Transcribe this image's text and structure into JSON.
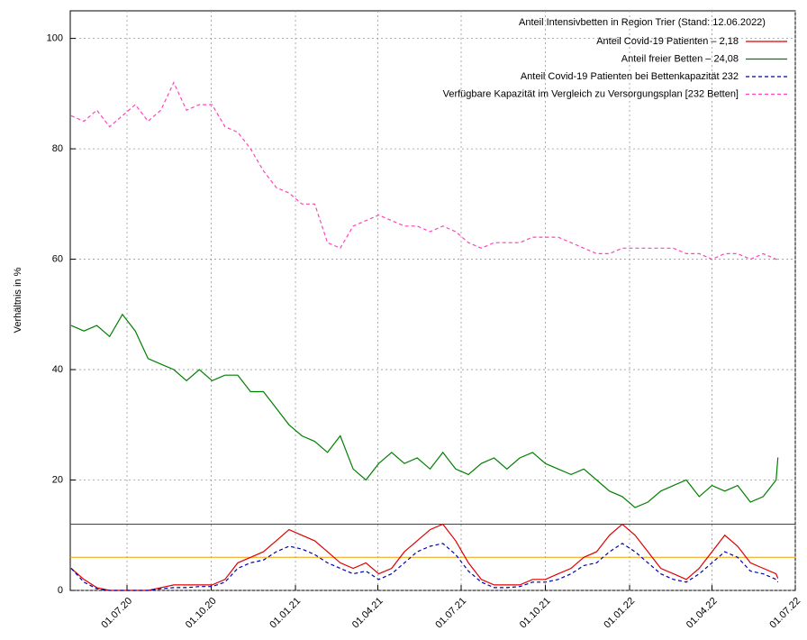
{
  "chart_data": {
    "type": "line",
    "legend_title": "Anteil Intensivbetten in Region Trier (Stand: 12.06.2022)",
    "y_label": "Verhältnis in %",
    "xlim": [
      "2020-04-30",
      "2022-07-01"
    ],
    "xticks": [
      {
        "value": "2020-07-01",
        "label": "01.07.20"
      },
      {
        "value": "2020-10-01",
        "label": "01.10.20"
      },
      {
        "value": "2021-01-01",
        "label": "01.01.21"
      },
      {
        "value": "2021-04-01",
        "label": "01.04.21"
      },
      {
        "value": "2021-07-01",
        "label": "01.07.21"
      },
      {
        "value": "2021-10-01",
        "label": "01.10.21"
      },
      {
        "value": "2022-01-01",
        "label": "01.01.22"
      },
      {
        "value": "2022-04-01",
        "label": "01.04.22"
      },
      {
        "value": "2022-07-01",
        "label": "01.07.22"
      }
    ],
    "ylim": [
      0,
      105
    ],
    "yticks": [
      0,
      20,
      40,
      60,
      80,
      100
    ],
    "grid": true,
    "legend": "top-right",
    "reference_lines": [
      {
        "value": 12,
        "color": "#dd0000"
      },
      {
        "value": 6,
        "color": "#f0a000"
      }
    ],
    "x": [
      "2020-05-01",
      "2020-05-15",
      "2020-05-29",
      "2020-06-12",
      "2020-06-26",
      "2020-07-10",
      "2020-07-24",
      "2020-08-07",
      "2020-08-21",
      "2020-09-04",
      "2020-09-18",
      "2020-10-02",
      "2020-10-16",
      "2020-10-30",
      "2020-11-13",
      "2020-11-27",
      "2020-12-11",
      "2020-12-25",
      "2021-01-08",
      "2021-01-22",
      "2021-02-05",
      "2021-02-19",
      "2021-03-05",
      "2021-03-19",
      "2021-04-02",
      "2021-04-16",
      "2021-04-30",
      "2021-05-14",
      "2021-05-28",
      "2021-06-11",
      "2021-06-25",
      "2021-07-09",
      "2021-07-23",
      "2021-08-06",
      "2021-08-20",
      "2021-09-03",
      "2021-09-17",
      "2021-10-01",
      "2021-10-15",
      "2021-10-29",
      "2021-11-12",
      "2021-11-26",
      "2021-12-10",
      "2021-12-24",
      "2022-01-07",
      "2022-01-21",
      "2022-02-04",
      "2022-02-18",
      "2022-03-04",
      "2022-03-18",
      "2022-04-01",
      "2022-04-15",
      "2022-04-29",
      "2022-05-13",
      "2022-05-27",
      "2022-06-10",
      "2022-06-12"
    ],
    "series": [
      {
        "name": "Anteil Covid-19 Patienten – 2,18",
        "color": "#dd0000",
        "dash": false,
        "values": [
          4,
          2,
          0.5,
          0,
          0,
          0,
          0,
          0.5,
          1,
          1,
          1,
          1,
          2,
          5,
          6,
          7,
          9,
          11,
          10,
          9,
          7,
          5,
          4,
          5,
          3,
          4,
          7,
          9,
          11,
          12,
          9,
          5,
          2,
          1,
          1,
          1,
          2,
          2,
          3,
          4,
          6,
          7,
          10,
          12,
          10,
          7,
          4,
          3,
          2,
          4,
          7,
          10,
          8,
          5,
          4,
          3,
          2.18
        ]
      },
      {
        "name": "Anteil freier Betten –  24,08",
        "color": "#008000",
        "dash": false,
        "values": [
          48,
          47,
          48,
          46,
          50,
          47,
          42,
          41,
          40,
          38,
          40,
          38,
          39,
          39,
          36,
          36,
          33,
          30,
          28,
          27,
          25,
          28,
          22,
          20,
          23,
          25,
          23,
          24,
          22,
          25,
          22,
          21,
          23,
          24,
          22,
          24,
          25,
          23,
          22,
          21,
          22,
          20,
          18,
          17,
          15,
          16,
          18,
          19,
          20,
          17,
          19,
          18,
          19,
          16,
          17,
          20,
          24.08
        ]
      },
      {
        "name": "Anteil Covid-19 Patienten bei Bettenkapazität 232",
        "color": "#0000aa",
        "dash": true,
        "values": [
          4,
          1.5,
          0.3,
          0,
          0,
          0,
          0,
          0.3,
          0.5,
          0.5,
          0.7,
          0.7,
          1.5,
          4,
          5,
          5.5,
          7,
          8,
          7.5,
          6.5,
          5,
          4,
          3,
          3.5,
          2,
          3,
          5,
          7,
          8,
          8.5,
          6.5,
          3.5,
          1.5,
          0.5,
          0.5,
          0.7,
          1.5,
          1.5,
          2,
          3,
          4.5,
          5,
          7,
          8.5,
          7,
          5,
          3,
          2,
          1.5,
          3,
          5,
          7,
          6,
          3.5,
          3,
          2,
          1.5
        ]
      },
      {
        "name": "Verfügbare Kapazität im Vergleich zu Versorgungsplan [232 Betten]",
        "color": "#ff44bb",
        "dash": true,
        "values": [
          86,
          85,
          87,
          84,
          86,
          88,
          85,
          87,
          92,
          87,
          88,
          88,
          84,
          83,
          80,
          76,
          73,
          72,
          70,
          70,
          63,
          62,
          66,
          67,
          68,
          67,
          66,
          66,
          65,
          66,
          65,
          63,
          62,
          63,
          63,
          63,
          64,
          64,
          64,
          63,
          62,
          61,
          61,
          62,
          62,
          62,
          62,
          62,
          61,
          61,
          60,
          61,
          61,
          60,
          61,
          60,
          60
        ]
      }
    ]
  }
}
